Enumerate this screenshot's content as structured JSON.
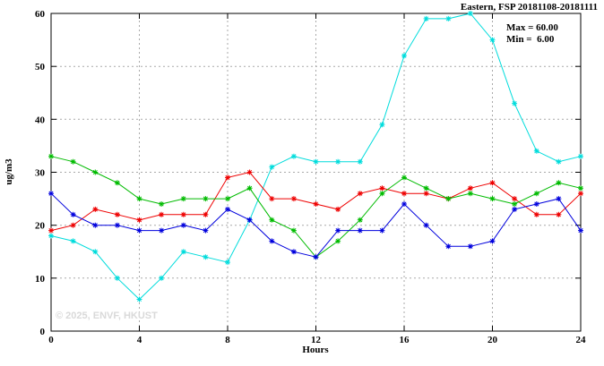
{
  "header": {
    "title": "Eastern, FSP 20181108-20181111"
  },
  "annotation": {
    "max": "Max = 60.00",
    "min": "Min =  6.00"
  },
  "watermark": "© 2025, ENVF, HKUST",
  "chart_data": {
    "type": "line",
    "title": "Eastern, FSP 20181108-20181111",
    "xlabel": "Hours",
    "ylabel": "ug/m3",
    "xlim": [
      0,
      24
    ],
    "ylim": [
      0,
      60
    ],
    "xticks": [
      0,
      4,
      8,
      12,
      16,
      20,
      24
    ],
    "yticks": [
      0,
      10,
      20,
      30,
      40,
      50,
      60
    ],
    "grid": true,
    "legend": "none",
    "marker": "asterisk",
    "stats": {
      "max": 60.0,
      "min": 6.0
    },
    "x": [
      0,
      1,
      2,
      3,
      4,
      5,
      6,
      7,
      8,
      9,
      10,
      11,
      12,
      13,
      14,
      15,
      16,
      17,
      18,
      19,
      20,
      21,
      22,
      23,
      24
    ],
    "series": [
      {
        "name": "cyan",
        "color": "#00dcdc",
        "values": [
          18,
          17,
          15,
          10,
          6,
          10,
          15,
          14,
          13,
          21,
          31,
          33,
          32,
          32,
          32,
          39,
          52,
          59,
          59,
          60,
          55,
          43,
          34,
          32,
          33
        ]
      },
      {
        "name": "red",
        "color": "#ee0000",
        "values": [
          19,
          20,
          23,
          22,
          21,
          22,
          22,
          22,
          29,
          30,
          25,
          25,
          24,
          23,
          26,
          27,
          26,
          26,
          25,
          27,
          28,
          25,
          22,
          22,
          26
        ]
      },
      {
        "name": "green",
        "color": "#00bb00",
        "values": [
          33,
          32,
          30,
          28,
          25,
          24,
          25,
          25,
          25,
          27,
          21,
          19,
          14,
          17,
          21,
          26,
          29,
          27,
          25,
          26,
          25,
          24,
          26,
          28,
          27
        ]
      },
      {
        "name": "blue",
        "color": "#0000dd",
        "values": [
          26,
          22,
          20,
          20,
          19,
          19,
          20,
          19,
          23,
          21,
          17,
          15,
          14,
          19,
          19,
          19,
          24,
          20,
          16,
          16,
          17,
          23,
          24,
          25,
          19
        ]
      }
    ]
  }
}
